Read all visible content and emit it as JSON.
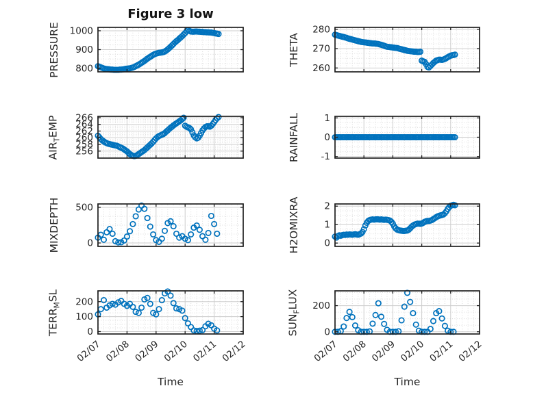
{
  "figure": {
    "title": "Figure 3 low",
    "xlabel": "Time"
  },
  "style": {
    "marker_color": "#0072BD",
    "axis_color": "#1f1f1f",
    "grid_color": "#cdcdcd",
    "minor_grid_color": "#dcdcdc",
    "text_color": "#262626",
    "background": "#ffffff"
  },
  "time_axis": {
    "xlim": [
      0,
      5
    ],
    "major_ticks": [
      0,
      1,
      2,
      3,
      4,
      5
    ],
    "labels": [
      "02/07",
      "02/08",
      "02/09",
      "02/10",
      "02/11",
      "02/12"
    ],
    "minor_step": 0.2,
    "label_rotation": -40
  },
  "chart_data": [
    {
      "type": "scatter",
      "slug": "pressure",
      "ylabel_parts": [
        {
          "text": "PRESSURE",
          "sub": false
        }
      ],
      "ylim": [
        782,
        1018
      ],
      "yticks": [
        800,
        900,
        1000
      ],
      "ytick_labels": [
        "800",
        "900",
        "1000"
      ],
      "t_start": 0,
      "t_step": 0.05,
      "values": [
        812,
        809,
        806,
        803,
        800,
        798,
        797,
        796,
        795,
        794,
        794,
        793,
        793,
        793,
        793,
        794,
        794,
        795,
        796,
        798,
        799,
        800,
        801,
        803,
        805,
        808,
        812,
        816,
        820,
        825,
        830,
        835,
        840,
        846,
        852,
        857,
        862,
        867,
        872,
        876,
        879,
        881,
        883,
        884,
        885,
        887,
        890,
        895,
        901,
        908,
        915,
        922,
        930,
        938,
        945,
        951,
        958,
        965,
        972,
        980,
        988,
        997,
        1004,
        999,
        996,
        995,
        995,
        996,
        996,
        995,
        995,
        994,
        994,
        993,
        993,
        992,
        992,
        991,
        991,
        989,
        988,
        986,
        985,
        983
      ]
    },
    {
      "type": "scatter",
      "slug": "theta",
      "ylabel_parts": [
        {
          "text": "THETA",
          "sub": false
        }
      ],
      "ylim": [
        258,
        281
      ],
      "yticks": [
        260,
        270,
        280
      ],
      "ytick_labels": [
        "260",
        "270",
        "280"
      ],
      "t_start": 0,
      "t_step": 0.05,
      "values": [
        277.2,
        277.0,
        276.8,
        276.6,
        276.4,
        276.2,
        276.0,
        275.8,
        275.6,
        275.3,
        275.1,
        274.9,
        274.7,
        274.5,
        274.3,
        274.1,
        273.9,
        273.7,
        273.5,
        273.4,
        273.3,
        273.2,
        273.1,
        273.0,
        272.9,
        272.8,
        272.7,
        272.7,
        272.6,
        272.5,
        272.4,
        272.2,
        272.0,
        271.8,
        271.5,
        271.2,
        271.0,
        270.9,
        270.8,
        270.7,
        270.6,
        270.5,
        270.4,
        270.3,
        270.1,
        269.9,
        269.7,
        269.5,
        269.3,
        269.1,
        268.9,
        268.8,
        268.7,
        268.6,
        268.5,
        268.4,
        268.4,
        268.3,
        268.3,
        268.4,
        263.8,
        263.4,
        263.2,
        262.0,
        260.6,
        260.3,
        261.0,
        261.8,
        262.6,
        263.2,
        263.8,
        264.1,
        264.3,
        264.3,
        264.2,
        264.4,
        264.7,
        265.1,
        265.6,
        266.0,
        266.4,
        266.6,
        266.7,
        266.9
      ]
    },
    {
      "type": "scatter",
      "slug": "air-temp",
      "ylabel_parts": [
        {
          "text": "AIR",
          "sub": false
        },
        {
          "text": "T",
          "sub": true
        },
        {
          "text": "EMP",
          "sub": false
        }
      ],
      "ylim": [
        253.9,
        266.4
      ],
      "yticks": [
        256,
        258,
        260,
        262,
        264,
        266
      ],
      "ytick_labels": [
        "256",
        "258",
        "260",
        "262",
        "264",
        "266"
      ],
      "t_start": 0,
      "t_step": 0.05,
      "values": [
        260.6,
        260.1,
        259.6,
        259.2,
        258.9,
        258.6,
        258.4,
        258.2,
        258.1,
        258.0,
        257.9,
        257.8,
        257.7,
        257.6,
        257.4,
        257.2,
        257.0,
        256.8,
        256.5,
        256.2,
        255.9,
        255.5,
        255.1,
        254.8,
        254.6,
        254.5,
        254.6,
        254.8,
        255.1,
        255.4,
        255.7,
        256.0,
        256.3,
        256.7,
        257.1,
        257.5,
        257.9,
        258.3,
        258.8,
        259.3,
        259.8,
        260.2,
        260.5,
        260.7,
        260.9,
        261.1,
        261.4,
        261.8,
        262.2,
        262.6,
        263.0,
        263.3,
        263.7,
        264.0,
        264.3,
        264.6,
        264.9,
        265.2,
        265.6,
        266.0,
        263.6,
        263.3,
        263.1,
        262.9,
        262.5,
        261.6,
        260.7,
        260.1,
        259.8,
        260.0,
        260.6,
        261.4,
        262.2,
        262.8,
        263.2,
        263.4,
        263.4,
        263.3,
        263.6,
        264.1,
        264.7,
        265.3,
        265.8,
        266.2
      ]
    },
    {
      "type": "scatter",
      "slug": "rainfall",
      "ylabel_parts": [
        {
          "text": "RAINFALL",
          "sub": false
        }
      ],
      "ylim": [
        -1.08,
        1.08
      ],
      "yticks": [
        -1,
        0,
        1
      ],
      "ytick_labels": [
        "-1",
        "0",
        "1"
      ],
      "t_start": 0,
      "t_step": 0.05,
      "values": [
        0,
        0,
        0,
        0,
        0,
        0,
        0,
        0,
        0,
        0,
        0,
        0,
        0,
        0,
        0,
        0,
        0,
        0,
        0,
        0,
        0,
        0,
        0,
        0,
        0,
        0,
        0,
        0,
        0,
        0,
        0,
        0,
        0,
        0,
        0,
        0,
        0,
        0,
        0,
        0,
        0,
        0,
        0,
        0,
        0,
        0,
        0,
        0,
        0,
        0,
        0,
        0,
        0,
        0,
        0,
        0,
        0,
        0,
        0,
        0,
        0,
        0,
        0,
        0,
        0,
        0,
        0,
        0,
        0,
        0,
        0,
        0,
        0,
        0,
        0,
        0,
        0,
        0,
        0,
        0,
        0,
        0,
        0,
        0
      ]
    },
    {
      "type": "scatter",
      "slug": "mixdepth",
      "ylabel_parts": [
        {
          "text": "MIXDEPTH",
          "sub": false
        }
      ],
      "ylim": [
        -48,
        548
      ],
      "yticks": [
        0,
        500
      ],
      "ytick_labels": [
        "0",
        "500"
      ],
      "t_start": 0,
      "t_step": 0.1,
      "values": [
        75,
        115,
        45,
        150,
        195,
        130,
        25,
        8,
        10,
        35,
        90,
        165,
        265,
        375,
        470,
        525,
        480,
        350,
        230,
        120,
        40,
        15,
        60,
        170,
        280,
        305,
        235,
        130,
        75,
        95,
        60,
        40,
        120,
        215,
        245,
        185,
        95,
        45,
        140,
        380,
        265,
        130
      ]
    },
    {
      "type": "scatter",
      "slug": "h2omixra",
      "ylabel_parts": [
        {
          "text": "H2OMIXRA",
          "sub": false
        }
      ],
      "ylim": [
        -0.18,
        2.12
      ],
      "yticks": [
        0,
        1,
        2
      ],
      "ytick_labels": [
        "0",
        "1",
        "2"
      ],
      "t_start": 0,
      "t_step": 0.05,
      "values": [
        0.35,
        0.3,
        0.38,
        0.42,
        0.4,
        0.43,
        0.45,
        0.44,
        0.46,
        0.45,
        0.47,
        0.46,
        0.45,
        0.47,
        0.48,
        0.46,
        0.45,
        0.48,
        0.52,
        0.6,
        0.75,
        0.95,
        1.1,
        1.2,
        1.25,
        1.27,
        1.28,
        1.27,
        1.28,
        1.29,
        1.28,
        1.27,
        1.28,
        1.27,
        1.26,
        1.27,
        1.26,
        1.25,
        1.22,
        1.15,
        1.05,
        0.9,
        0.8,
        0.73,
        0.7,
        0.68,
        0.67,
        0.66,
        0.66,
        0.67,
        0.68,
        0.72,
        0.8,
        0.88,
        0.95,
        1.0,
        1.03,
        1.05,
        1.05,
        1.04,
        1.06,
        1.1,
        1.15,
        1.18,
        1.2,
        1.2,
        1.22,
        1.25,
        1.3,
        1.35,
        1.4,
        1.45,
        1.48,
        1.5,
        1.52,
        1.55,
        1.62,
        1.72,
        1.85,
        1.95,
        2.02,
        2.05,
        2.07,
        2.05
      ]
    },
    {
      "type": "scatter",
      "slug": "terr-msl",
      "ylabel_parts": [
        {
          "text": "TERR",
          "sub": false
        },
        {
          "text": "M",
          "sub": true
        },
        {
          "text": "SL",
          "sub": false
        }
      ],
      "ylim": [
        -16,
        272
      ],
      "yticks": [
        0,
        100,
        200
      ],
      "ytick_labels": [
        "0",
        "100",
        "200"
      ],
      "t_start": 0,
      "t_step": 0.1,
      "values": [
        115,
        150,
        210,
        160,
        175,
        185,
        180,
        195,
        205,
        185,
        172,
        185,
        165,
        132,
        125,
        160,
        215,
        225,
        185,
        125,
        115,
        150,
        210,
        255,
        268,
        240,
        190,
        155,
        150,
        140,
        90,
        55,
        30,
        8,
        4,
        6,
        10,
        35,
        52,
        42,
        20,
        8
      ]
    },
    {
      "type": "scatter",
      "slug": "sun-flux",
      "ylabel_parts": [
        {
          "text": "SUN",
          "sub": false
        },
        {
          "text": "F",
          "sub": true
        },
        {
          "text": "LUX",
          "sub": false
        }
      ],
      "ylim": [
        -17,
        313
      ],
      "yticks": [
        0,
        200
      ],
      "ytick_labels": [
        "0",
        "200"
      ],
      "t_start": 0,
      "t_step": 0.1,
      "values": [
        0,
        0,
        5,
        40,
        105,
        152,
        112,
        48,
        12,
        0,
        0,
        0,
        3,
        62,
        128,
        218,
        115,
        60,
        15,
        0,
        0,
        0,
        4,
        88,
        192,
        298,
        228,
        142,
        55,
        8,
        0,
        0,
        0,
        22,
        82,
        142,
        158,
        102,
        45,
        8,
        0,
        0
      ]
    }
  ]
}
